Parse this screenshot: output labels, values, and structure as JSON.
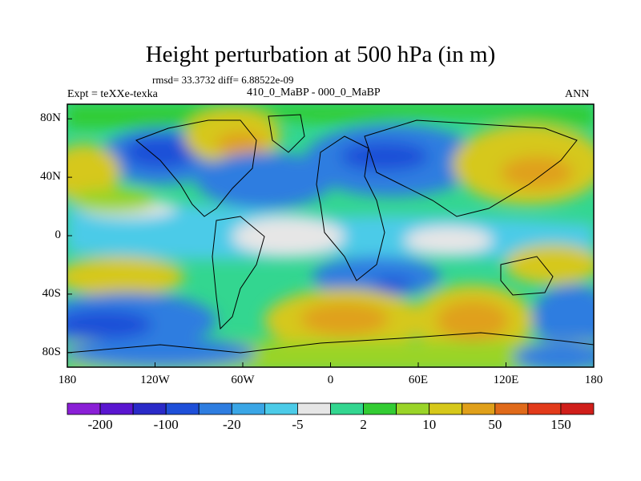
{
  "title": "Height perturbation at 500 hPa (in m)",
  "stats": "rmsd= 33.3732  diff= 6.88522e-09",
  "experiment": "Expt = teXXe-texka",
  "comparison": "410_0_MaBP - 000_0_MaBP",
  "season": "ANN",
  "axes": {
    "lat_labels": [
      "80N",
      "40N",
      "0",
      "40S",
      "80S"
    ],
    "lat_values": [
      80,
      40,
      0,
      -40,
      -80
    ],
    "lon_labels": [
      "180",
      "120W",
      "60W",
      "0",
      "60E",
      "120E",
      "180"
    ],
    "lon_values": [
      -180,
      -120,
      -60,
      0,
      60,
      120,
      180
    ]
  },
  "colorbar": {
    "labels": [
      "-200",
      "-100",
      "-20",
      "-5",
      "2",
      "10",
      "50",
      "150"
    ],
    "colors": [
      "#8a1fd6",
      "#5a16d0",
      "#2a2ac8",
      "#1e4fd8",
      "#2e7de0",
      "#3aa6e6",
      "#4ccbe8",
      "#e6e6e6",
      "#33d690",
      "#33cc33",
      "#9ad428",
      "#d6c81a",
      "#e0a01a",
      "#e06a1a",
      "#e23a1a",
      "#d01e1a"
    ]
  }
}
